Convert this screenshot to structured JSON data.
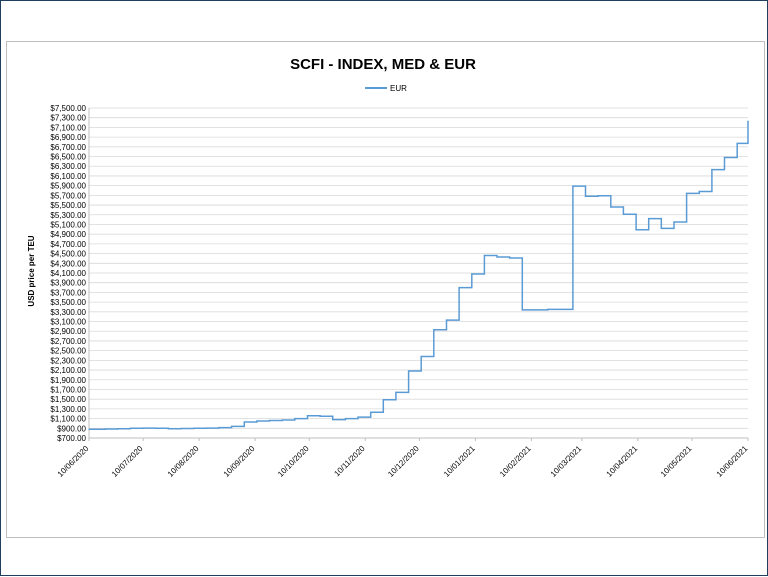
{
  "chart_data": {
    "type": "line",
    "title": "SCFI - INDEX, MED & EUR",
    "xlabel": "",
    "ylabel": "USD price per TEU",
    "ylim": [
      700,
      7500
    ],
    "ytick_step": 200,
    "ytick_prefix": "$",
    "xlim": [
      "2020-06-10",
      "2021-06-10"
    ],
    "x_ticks": [
      "10/06/2020",
      "10/07/2020",
      "10/08/2020",
      "10/09/2020",
      "10/10/2020",
      "10/11/2020",
      "10/12/2020",
      "10/01/2021",
      "10/02/2021",
      "10/03/2021",
      "10/04/2021",
      "10/05/2021",
      "10/06/2021"
    ],
    "grid": "horizontal",
    "legend_position": "top",
    "line_style": "step",
    "series": [
      {
        "name": "EUR",
        "color": "#5b9bd5",
        "x": [
          "2020-06-10",
          "2020-06-19",
          "2020-06-26",
          "2020-07-03",
          "2020-07-10",
          "2020-07-17",
          "2020-07-24",
          "2020-07-31",
          "2020-08-07",
          "2020-08-14",
          "2020-08-21",
          "2020-08-28",
          "2020-09-04",
          "2020-09-11",
          "2020-09-18",
          "2020-09-25",
          "2020-10-02",
          "2020-10-09",
          "2020-10-16",
          "2020-10-23",
          "2020-10-30",
          "2020-11-06",
          "2020-11-13",
          "2020-11-20",
          "2020-11-27",
          "2020-12-04",
          "2020-12-11",
          "2020-12-18",
          "2020-12-25",
          "2021-01-01",
          "2021-01-08",
          "2021-01-15",
          "2021-01-22",
          "2021-01-29",
          "2021-02-05",
          "2021-02-12",
          "2021-02-19",
          "2021-02-26",
          "2021-03-05",
          "2021-03-12",
          "2021-03-19",
          "2021-03-26",
          "2021-04-02",
          "2021-04-09",
          "2021-04-16",
          "2021-04-23",
          "2021-04-30",
          "2021-05-07",
          "2021-05-14",
          "2021-05-21",
          "2021-05-28",
          "2021-06-04",
          "2021-06-10"
        ],
        "y": [
          880,
          885,
          890,
          900,
          905,
          900,
          890,
          895,
          900,
          905,
          915,
          940,
          1030,
          1050,
          1060,
          1070,
          1100,
          1160,
          1150,
          1080,
          1100,
          1130,
          1230,
          1490,
          1640,
          2080,
          2380,
          2930,
          3130,
          3800,
          4080,
          4460,
          4430,
          4410,
          3340,
          3340,
          3350,
          3350,
          5890,
          5680,
          5690,
          5460,
          5310,
          4990,
          5220,
          5020,
          5150,
          5740,
          5780,
          6230,
          6480,
          6770,
          7230
        ]
      }
    ]
  }
}
